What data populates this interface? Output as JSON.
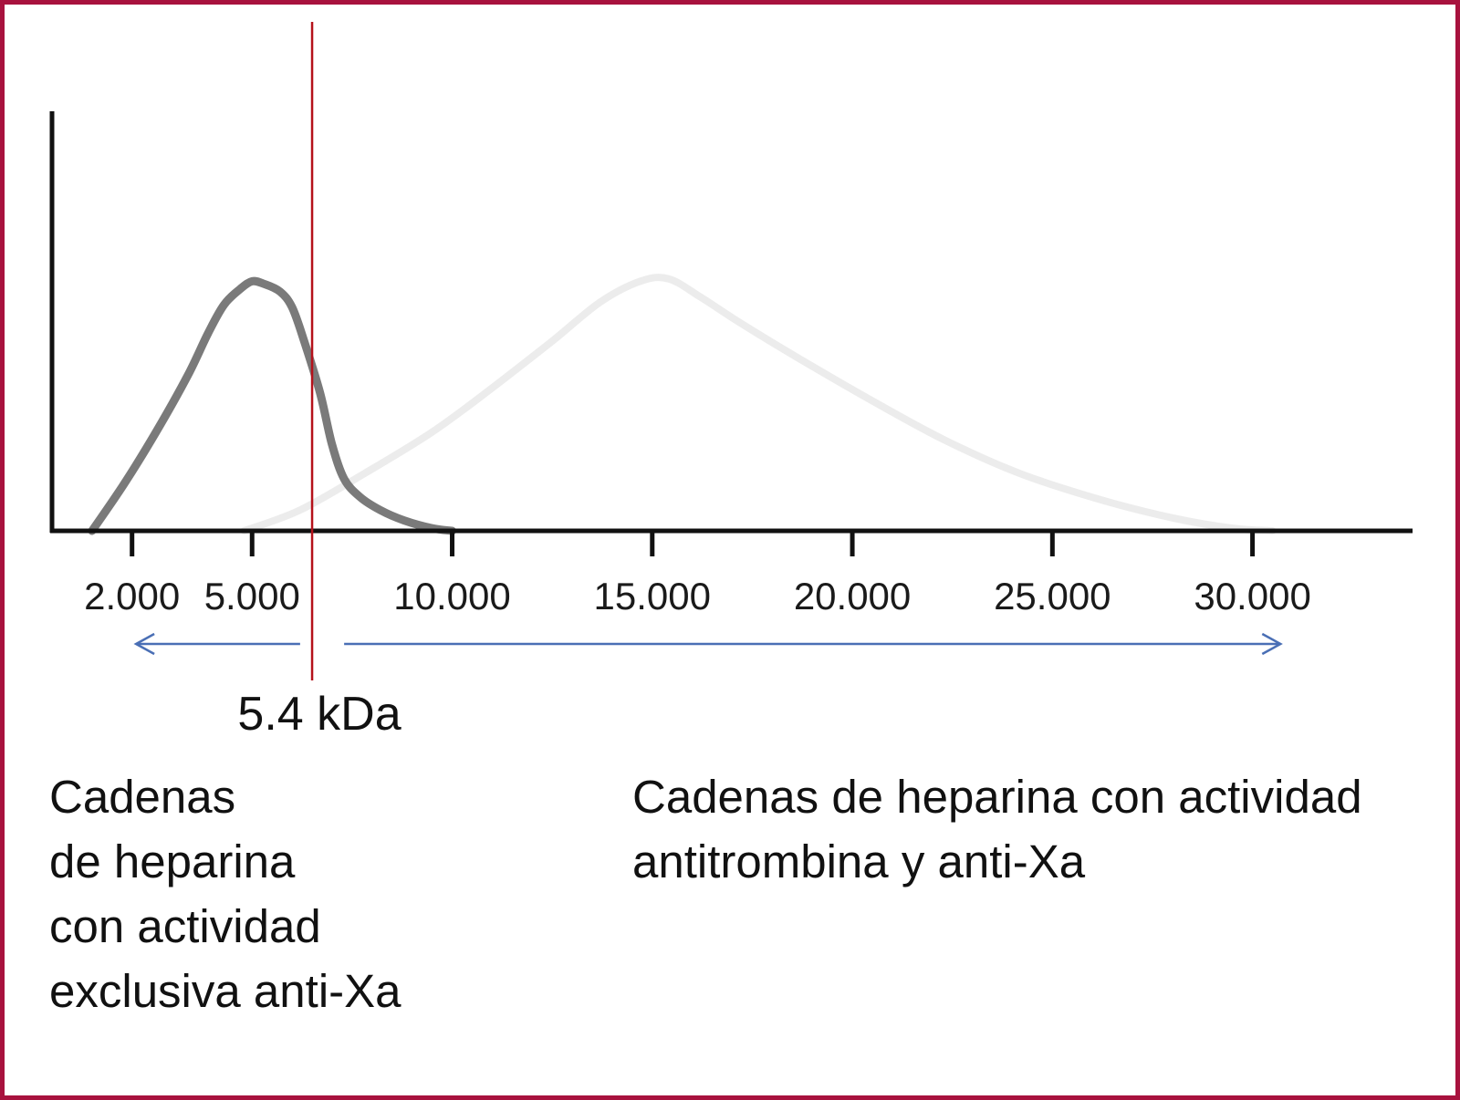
{
  "chart_data": {
    "type": "line",
    "title": "",
    "xlabel": "",
    "ylabel": "",
    "xlim": [
      0,
      34000
    ],
    "ylim": [
      0,
      1
    ],
    "x_ticks": [
      {
        "value": 2000,
        "label": "2.000"
      },
      {
        "value": 5000,
        "label": "5.000"
      },
      {
        "value": 10000,
        "label": "10.000"
      },
      {
        "value": 15000,
        "label": "15.000"
      },
      {
        "value": 20000,
        "label": "20.000"
      },
      {
        "value": 25000,
        "label": "25.000"
      },
      {
        "value": 30000,
        "label": "30.000"
      }
    ],
    "y_ticks": [],
    "grid": false,
    "legend": "none",
    "series": [
      {
        "color": "#7a7a7a",
        "points": [
          [
            1000,
            0.0
          ],
          [
            1800,
            0.18
          ],
          [
            2600,
            0.38
          ],
          [
            3400,
            0.6
          ],
          [
            3900,
            0.76
          ],
          [
            4300,
            0.87
          ],
          [
            4700,
            0.93
          ],
          [
            5000,
            0.96
          ],
          [
            5300,
            0.95
          ],
          [
            5700,
            0.92
          ],
          [
            6000,
            0.86
          ],
          [
            6300,
            0.73
          ],
          [
            6700,
            0.53
          ],
          [
            7000,
            0.33
          ],
          [
            7300,
            0.2
          ],
          [
            7700,
            0.13
          ],
          [
            8200,
            0.08
          ],
          [
            8800,
            0.04
          ],
          [
            9500,
            0.01
          ],
          [
            10000,
            0.0
          ]
        ]
      },
      {
        "color": "#ececec",
        "points": [
          [
            4800,
            0.0
          ],
          [
            6200,
            0.08
          ],
          [
            7800,
            0.22
          ],
          [
            9500,
            0.38
          ],
          [
            11000,
            0.55
          ],
          [
            12500,
            0.73
          ],
          [
            13700,
            0.88
          ],
          [
            14700,
            0.96
          ],
          [
            15400,
            0.97
          ],
          [
            16200,
            0.9
          ],
          [
            17200,
            0.8
          ],
          [
            18700,
            0.66
          ],
          [
            20500,
            0.5
          ],
          [
            22300,
            0.35
          ],
          [
            24200,
            0.22
          ],
          [
            26200,
            0.12
          ],
          [
            28000,
            0.05
          ],
          [
            29500,
            0.01
          ],
          [
            30500,
            0.0
          ]
        ]
      }
    ],
    "divider": {
      "x": 6500,
      "label": "5.4 kDa",
      "color": "#b5121b"
    },
    "range_arrows": {
      "color": "#4a6fb5",
      "left": {
        "from": 6200,
        "to": 2100
      },
      "right": {
        "from": 7300,
        "to": 30700
      }
    },
    "captions": {
      "left_lines": [
        "Cadenas",
        "de heparina",
        "con actividad",
        "exclusiva anti-Xa"
      ],
      "right_lines": [
        "Cadenas de heparina con actividad",
        "antitrombina y anti-Xa"
      ]
    }
  }
}
